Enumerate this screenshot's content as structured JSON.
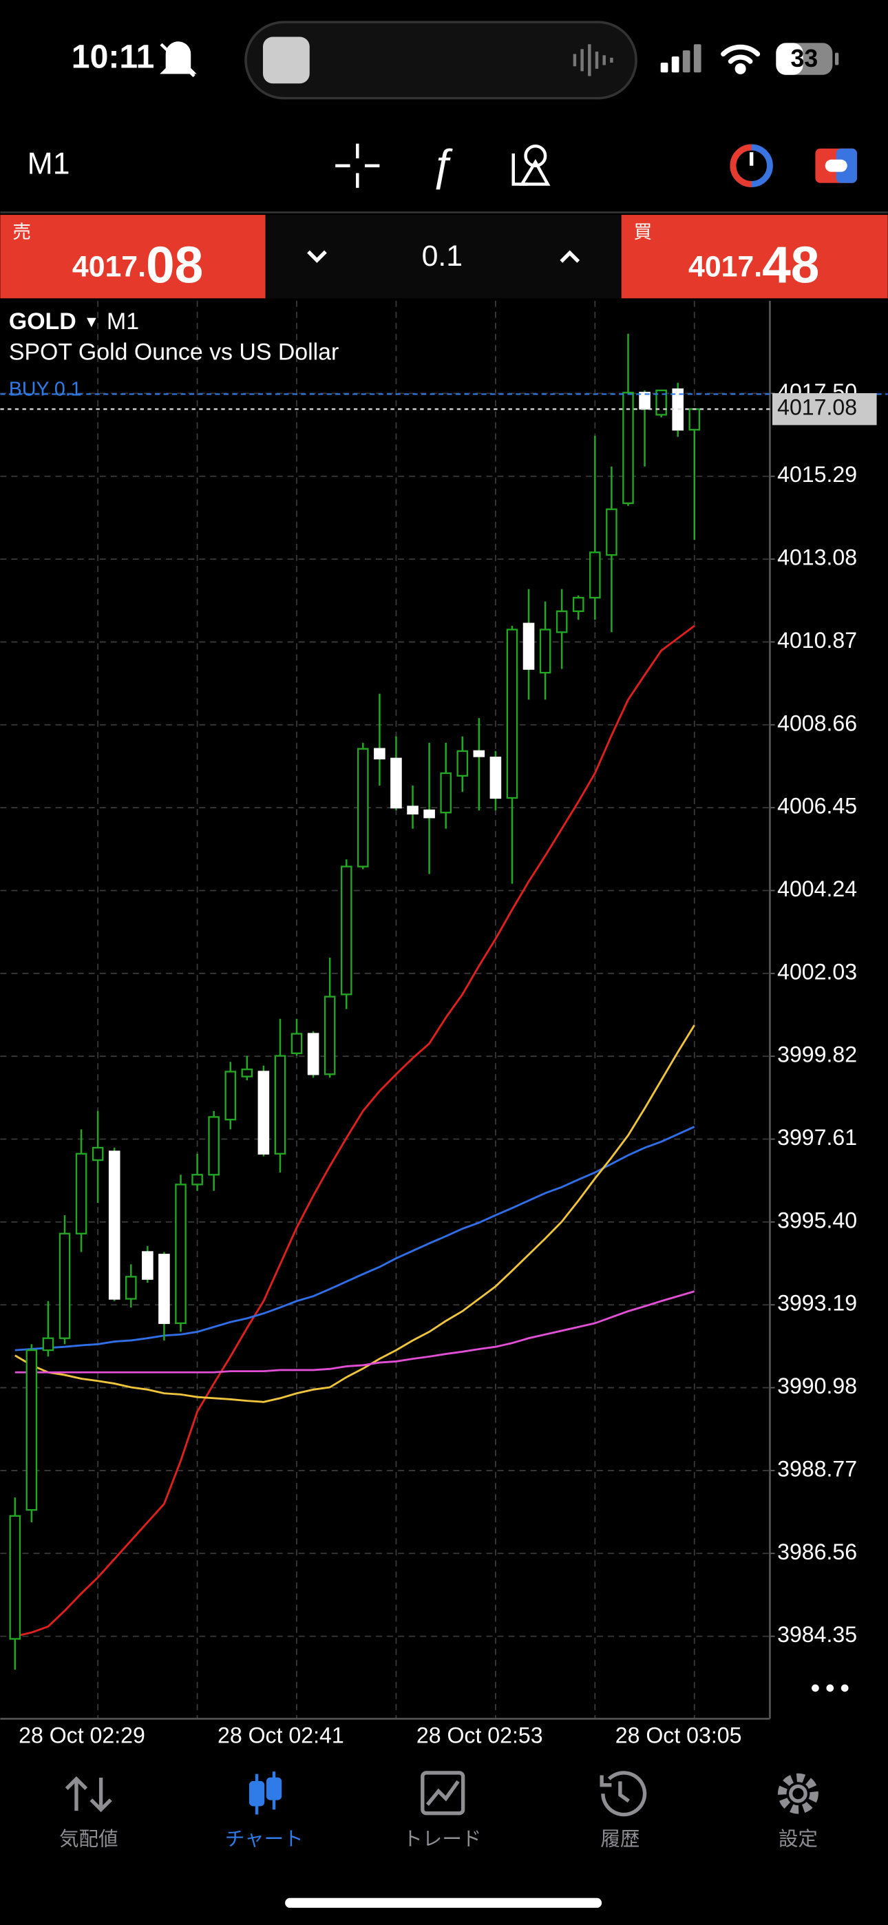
{
  "status_bar": {
    "time": "10:11",
    "battery": "33"
  },
  "toolbar": {
    "timeframe": "M1"
  },
  "trade_panel": {
    "sell_label": "売",
    "sell_price_main": "4017.",
    "sell_price_pips": "08",
    "volume": "0.1",
    "buy_label": "買",
    "buy_price_main": "4017.",
    "buy_price_pips": "48"
  },
  "chart_data": {
    "type": "candlestick",
    "symbol": "GOLD",
    "timeframe": "M1",
    "description": "SPOT Gold Ounce vs US Dollar",
    "x": [
      null,
      null,
      null,
      null,
      null,
      "28 Oct 02:29",
      null,
      null,
      null,
      null,
      null,
      null,
      null,
      null,
      null,
      null,
      null,
      "28 Oct 02:41",
      null,
      null,
      null,
      null,
      null,
      null,
      null,
      null,
      null,
      null,
      null,
      "28 Oct 02:53",
      null,
      null,
      null,
      null,
      null,
      null,
      null,
      null,
      null,
      null,
      null,
      "28 Oct 03:05"
    ],
    "open": [
      3984.28,
      3987.72,
      3991.98,
      3992.3,
      3995.09,
      3997.05,
      3997.28,
      3993.35,
      3994.6,
      3994.53,
      3992.7,
      3996.4,
      3996.66,
      3998.13,
      3999.28,
      3999.41,
      3997.22,
      3999.9,
      4000.42,
      3999.34,
      4001.47,
      4004.88,
      4008.02,
      4007.76,
      4006.48,
      4006.38,
      4006.32,
      4007.3,
      4007.96,
      4007.79,
      4006.71,
      4011.36,
      4010.05,
      4011.13,
      4011.69,
      4012.05,
      4013.19,
      4014.57,
      4017.52,
      4016.93,
      4017.61,
      4016.53
    ],
    "high": [
      3988.05,
      3992.14,
      3993.29,
      3995.58,
      3997.87,
      3998.36,
      3997.38,
      3994.27,
      3994.76,
      3994.6,
      3996.66,
      3997.22,
      3998.36,
      3999.67,
      3999.83,
      3999.57,
      4000.82,
      4000.82,
      4000.49,
      4002.45,
      4005.07,
      4008.18,
      4009.49,
      4008.35,
      4007.04,
      4008.18,
      4008.18,
      4008.35,
      4008.84,
      4007.96,
      4011.3,
      4012.28,
      4011.95,
      4012.28,
      4012.11,
      4016.37,
      4015.55,
      4019.09,
      4017.58,
      4017.58,
      4017.78,
      4017.09
    ],
    "low": [
      3983.46,
      3987.39,
      3991.81,
      3992.14,
      3994.6,
      3995.91,
      3993.29,
      3993.12,
      3993.78,
      3992.24,
      3992.47,
      3996.23,
      3996.23,
      3997.87,
      3999.18,
      3997.15,
      3996.72,
      3999.83,
      3999.25,
      3999.25,
      4001.08,
      4004.81,
      4007.04,
      4006.38,
      4005.89,
      4004.68,
      4005.89,
      4006.87,
      4006.38,
      4006.38,
      4004.42,
      4009.33,
      4009.33,
      4010.15,
      4011.46,
      4011.46,
      4011.13,
      4014.5,
      4015.55,
      4016.86,
      4016.34,
      4013.59
    ],
    "close": [
      3987.56,
      3991.98,
      3992.3,
      3995.09,
      3997.22,
      3997.38,
      3993.35,
      3993.94,
      3993.88,
      3992.7,
      3996.4,
      3996.66,
      3998.2,
      3999.41,
      3999.47,
      3997.22,
      3999.83,
      4000.42,
      3999.34,
      4001.41,
      4004.88,
      4008.02,
      4007.76,
      4006.45,
      4006.29,
      4006.19,
      4007.37,
      4007.96,
      4007.82,
      4006.71,
      4011.2,
      4010.15,
      4011.2,
      4011.69,
      4012.05,
      4013.26,
      4014.41,
      4017.52,
      4017.09,
      4017.58,
      4016.53,
      4017.08
    ],
    "up_color": "#22a822",
    "down_color": "#ffffff",
    "wick_color": "#22a822",
    "series": [
      {
        "color": "#e0201c",
        "values": [
          3984.35,
          3984.45,
          3984.61,
          3985.03,
          3985.49,
          3985.92,
          3986.41,
          3986.9,
          3987.39,
          3987.88,
          3989.03,
          3990.34,
          3991.09,
          3991.81,
          3992.57,
          3993.29,
          3994.27,
          3995.25,
          3996.1,
          3996.89,
          3997.64,
          3998.36,
          3998.89,
          3999.34,
          3999.77,
          4000.16,
          4000.85,
          4001.47,
          4002.23,
          4002.95,
          4003.73,
          4004.48,
          4005.17,
          4005.89,
          4006.61,
          4007.37,
          4008.38,
          4009.33,
          4009.99,
          4010.64,
          4010.97,
          4011.3
        ]
      },
      {
        "color": "#2f6fe8",
        "values": [
          3991.98,
          3992.01,
          3992.04,
          3992.07,
          3992.11,
          3992.14,
          3992.21,
          3992.24,
          3992.3,
          3992.37,
          3992.4,
          3992.47,
          3992.6,
          3992.73,
          3992.83,
          3992.96,
          3993.12,
          3993.29,
          3993.42,
          3993.61,
          3993.81,
          3994.01,
          3994.2,
          3994.43,
          3994.63,
          3994.83,
          3995.02,
          3995.22,
          3995.38,
          3995.58,
          3995.77,
          3995.97,
          3996.17,
          3996.33,
          3996.53,
          3996.72,
          3996.95,
          3997.18,
          3997.38,
          3997.54,
          3997.74,
          3997.94
        ]
      },
      {
        "color": "#f0c53c",
        "values": [
          3991.84,
          3991.58,
          3991.39,
          3991.32,
          3991.22,
          3991.16,
          3991.09,
          3990.99,
          3990.93,
          3990.83,
          3990.8,
          3990.73,
          3990.7,
          3990.67,
          3990.63,
          3990.6,
          3990.7,
          3990.83,
          3990.93,
          3990.99,
          3991.26,
          3991.49,
          3991.75,
          3991.98,
          3992.24,
          3992.47,
          3992.76,
          3993.02,
          3993.35,
          3993.68,
          3994.1,
          3994.53,
          3994.96,
          3995.41,
          3995.97,
          3996.56,
          3997.12,
          3997.71,
          3998.43,
          3999.18,
          3999.93,
          4000.65
        ]
      },
      {
        "color": "#e24fd6",
        "values": [
          3991.39,
          3991.39,
          3991.39,
          3991.39,
          3991.39,
          3991.39,
          3991.39,
          3991.39,
          3991.39,
          3991.39,
          3991.39,
          3991.39,
          3991.39,
          3991.42,
          3991.42,
          3991.42,
          3991.45,
          3991.45,
          3991.45,
          3991.48,
          3991.55,
          3991.58,
          3991.65,
          3991.68,
          3991.75,
          3991.81,
          3991.88,
          3991.94,
          3992.01,
          3992.07,
          3992.17,
          3992.3,
          3992.4,
          3992.5,
          3992.6,
          3992.7,
          3992.86,
          3993.02,
          3993.15,
          3993.29,
          3993.42,
          3993.55
        ]
      }
    ],
    "ylim": [
      3982.15,
      4019.97
    ],
    "yticks": [
      {
        "value": 4017.5,
        "label": "4017.50"
      },
      4015.29,
      4013.08,
      4010.87,
      4008.66,
      4006.45,
      4004.24,
      4002.03,
      3999.82,
      3997.61,
      {
        "value": 3995.4,
        "label": "3995.40"
      },
      3993.19,
      3990.98,
      3988.77,
      3986.56,
      3984.35
    ],
    "grid": true,
    "last_price": {
      "value": 4017.08,
      "label": "4017.08"
    },
    "position": {
      "label": "BUY 0.1",
      "price": 4017.48,
      "color": "#2f7be8"
    }
  },
  "tab_bar": {
    "active_tab": 1,
    "tabs": [
      {
        "label": "気配値"
      },
      {
        "label": "チャート"
      },
      {
        "label": "トレード"
      },
      {
        "label": "履歴"
      },
      {
        "label": "設定"
      }
    ]
  }
}
